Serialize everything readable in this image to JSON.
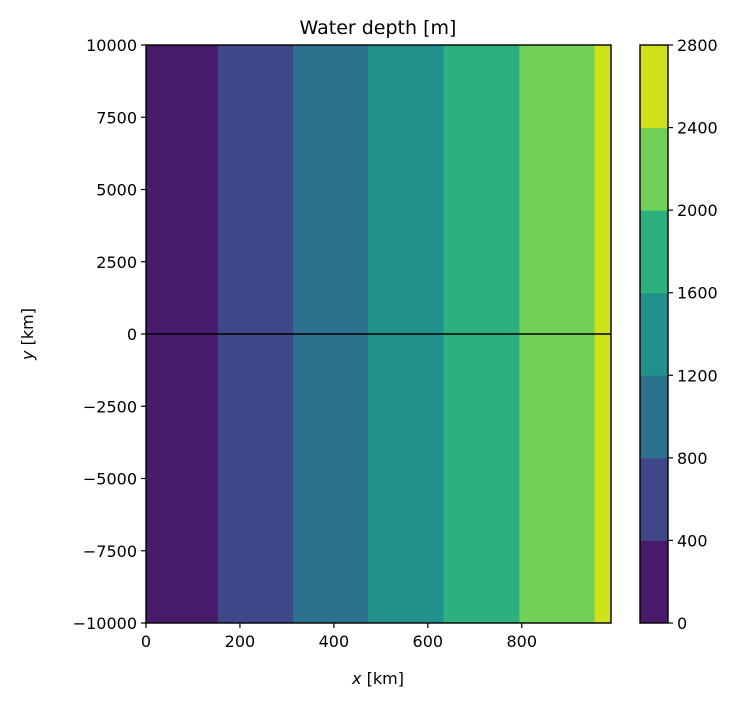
{
  "chart_data": {
    "type": "heatmap",
    "title": "Water depth [m]",
    "xlabel_var": "x",
    "xlabel_unit": "[km]",
    "ylabel_var": "y",
    "ylabel_unit": "[km]",
    "xlim": [
      0,
      990
    ],
    "ylim": [
      -10000,
      10000
    ],
    "x_ticks": [
      0,
      200,
      400,
      600,
      800
    ],
    "y_ticks": [
      10000,
      7500,
      5000,
      2500,
      0,
      -2500,
      -5000,
      -7500,
      -10000
    ],
    "x_tick_labels": [
      "0",
      "200",
      "400",
      "600",
      "800"
    ],
    "y_tick_labels": [
      "10000",
      "7500",
      "5000",
      "2500",
      "0",
      "−2500",
      "−5000",
      "−7500",
      "−10000"
    ],
    "bands": [
      {
        "x0": 0,
        "x1": 153,
        "level_range": [
          0,
          400
        ],
        "color": "#481a6c"
      },
      {
        "x0": 153,
        "x1": 313,
        "level_range": [
          400,
          800
        ],
        "color": "#3f4788"
      },
      {
        "x0": 313,
        "x1": 473,
        "level_range": [
          800,
          1200
        ],
        "color": "#2c718e"
      },
      {
        "x0": 473,
        "x1": 633,
        "level_range": [
          1200,
          1600
        ],
        "color": "#21918c"
      },
      {
        "x0": 633,
        "x1": 795,
        "level_range": [
          1600,
          2000
        ],
        "color": "#2cb17e"
      },
      {
        "x0": 795,
        "x1": 955,
        "level_range": [
          2000,
          2400
        ],
        "color": "#73d056"
      },
      {
        "x0": 955,
        "x1": 990,
        "level_range": [
          2400,
          2800
        ],
        "color": "#d0e11c"
      }
    ],
    "hline_y": 0,
    "colorbar": {
      "levels": [
        0,
        400,
        800,
        1200,
        1600,
        2000,
        2400,
        2800
      ],
      "tick_labels": [
        "0",
        "400",
        "800",
        "1200",
        "1600",
        "2000",
        "2400",
        "2800"
      ],
      "colors": [
        "#481a6c",
        "#3f4788",
        "#2c718e",
        "#21918c",
        "#2cb17e",
        "#73d056",
        "#d0e11c"
      ]
    }
  }
}
